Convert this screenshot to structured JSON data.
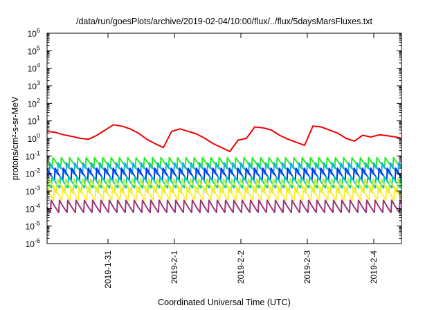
{
  "chart_data": {
    "type": "line",
    "title": "/data/run/goesPlots/archive/2019-02-04/10:00/flux/../flux/5daysMarsFluxes.txt",
    "xlabel": "Coordinated Universal Time (UTC)",
    "ylabel": "protons/cm²-s-sr-MeV",
    "yscale": "log",
    "ylim": [
      1e-06,
      1000000.0
    ],
    "xlim": [
      "2019-01-30T02:00",
      "2019-02-04T10:00"
    ],
    "grid": false,
    "legend": "none",
    "y_ticks": [
      {
        "base": "10",
        "exp": "-6",
        "value": 1e-06
      },
      {
        "base": "10",
        "exp": "-5",
        "value": 1e-05
      },
      {
        "base": "10",
        "exp": "-4",
        "value": 0.0001
      },
      {
        "base": "10",
        "exp": "-3",
        "value": 0.001
      },
      {
        "base": "10",
        "exp": "-2",
        "value": 0.01
      },
      {
        "base": "10",
        "exp": "-1",
        "value": 0.1
      },
      {
        "base": "10",
        "exp": "0",
        "value": 1
      },
      {
        "base": "10",
        "exp": "1",
        "value": 10
      },
      {
        "base": "10",
        "exp": "2",
        "value": 100
      },
      {
        "base": "10",
        "exp": "3",
        "value": 1000
      },
      {
        "base": "10",
        "exp": "4",
        "value": 10000
      },
      {
        "base": "10",
        "exp": "5",
        "value": 100000
      },
      {
        "base": "10",
        "exp": "6",
        "value": 1000000
      }
    ],
    "x_ticks": [
      {
        "label": "2019-1-31",
        "value": "2019-01-31T00:00"
      },
      {
        "label": "2019-2-1",
        "value": "2019-02-01T00:00"
      },
      {
        "label": "2019-2-2",
        "value": "2019-02-02T00:00"
      },
      {
        "label": "2019-2-3",
        "value": "2019-02-03T00:00"
      },
      {
        "label": "2019-2-4",
        "value": "2019-02-04T00:00"
      }
    ],
    "series": [
      {
        "color": "#ee0000",
        "x": [
          "2019-01-30T02:00",
          "2019-01-30T05:00",
          "2019-01-30T08:00",
          "2019-01-30T11:00",
          "2019-01-30T14:00",
          "2019-01-30T17:00",
          "2019-01-30T20:00",
          "2019-01-30T23:00",
          "2019-01-31T02:00",
          "2019-01-31T05:00",
          "2019-01-31T08:00",
          "2019-01-31T11:00",
          "2019-01-31T14:00",
          "2019-01-31T17:00",
          "2019-01-31T20:00",
          "2019-01-31T23:00",
          "2019-02-01T02:00",
          "2019-02-01T05:00",
          "2019-02-01T08:00",
          "2019-02-01T11:00",
          "2019-02-01T14:00",
          "2019-02-01T17:00",
          "2019-02-01T20:00",
          "2019-02-01T23:00",
          "2019-02-02T02:00",
          "2019-02-02T05:00",
          "2019-02-02T08:00",
          "2019-02-02T11:00",
          "2019-02-02T14:00",
          "2019-02-02T17:00",
          "2019-02-02T20:00",
          "2019-02-02T23:00",
          "2019-02-03T02:00",
          "2019-02-03T05:00",
          "2019-02-03T08:00",
          "2019-02-03T11:00",
          "2019-02-03T14:00",
          "2019-02-03T17:00",
          "2019-02-03T20:00",
          "2019-02-03T23:00",
          "2019-02-04T02:00",
          "2019-02-04T05:00",
          "2019-02-04T08:00",
          "2019-02-04T10:00"
        ],
        "y": [
          2.5,
          2.2,
          1.6,
          1.3,
          1.0,
          0.9,
          1.5,
          3.0,
          6.0,
          5.0,
          3.5,
          2.0,
          0.9,
          0.5,
          0.3,
          2.5,
          3.5,
          2.5,
          1.8,
          1.0,
          0.5,
          0.3,
          0.18,
          0.8,
          1.0,
          4.5,
          4.0,
          3.0,
          1.5,
          0.9,
          0.6,
          0.4,
          5.0,
          4.5,
          3.0,
          2.0,
          1.0,
          0.7,
          1.5,
          1.2,
          1.6,
          1.4,
          1.2,
          1.0
        ]
      },
      {
        "color": "#22ee22",
        "base": 0.02,
        "drop": 4.0,
        "period_hours": 3.0
      },
      {
        "color": "#22aaee",
        "base": 0.009,
        "drop": 4.5,
        "period_hours": 3.0
      },
      {
        "color": "#0033ee",
        "base": 0.004,
        "drop": 5.0,
        "period_hours": 3.0
      },
      {
        "color": "#00ccaa",
        "base": 0.0015,
        "drop": 4.5,
        "period_hours": 3.0
      },
      {
        "color": "#bbee33",
        "base": 0.0008,
        "drop": 6.0,
        "period_hours": 3.0
      },
      {
        "color": "#ffee33",
        "base": 0.0003,
        "drop": 6.0,
        "period_hours": 3.0
      },
      {
        "color": "#993377",
        "base": 6e-05,
        "drop": 5.0,
        "period_hours": 3.0
      }
    ]
  }
}
